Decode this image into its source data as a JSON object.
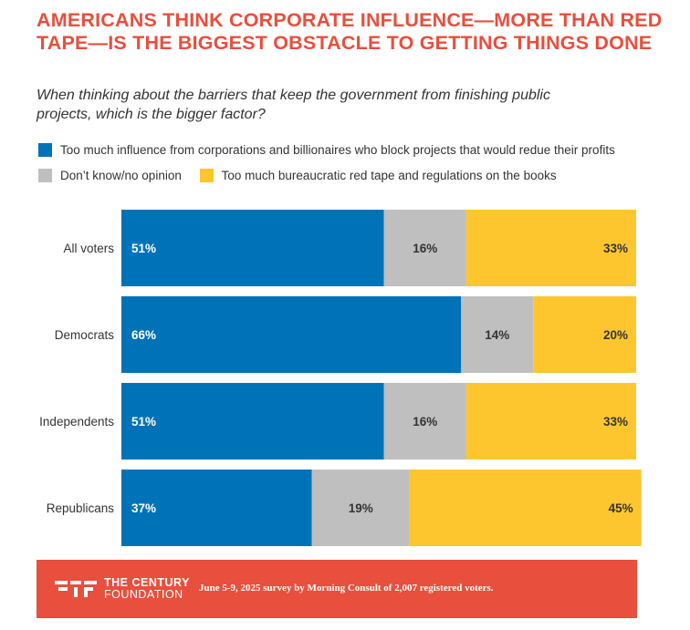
{
  "header": {
    "title": "AMERICANS THINK CORPORATE INFLUENCE—MORE THAN RED TAPE—IS THE BIGGEST OBSTACLE TO GETTING THINGS DONE",
    "subtitle": "When thinking about the barriers that keep the government from finishing public projects, which is the bigger factor?"
  },
  "chart_data": {
    "type": "bar",
    "orientation": "horizontal",
    "stacked": true,
    "categories": [
      "All voters",
      "Democrats",
      "Independents",
      "Republicans"
    ],
    "series": [
      {
        "name": "Too much influence from corporations and billionaires who block projects that would redue their profits",
        "color": "#0072b8",
        "values": [
          51,
          66,
          51,
          37
        ],
        "labels": [
          "51%",
          "66%",
          "51%",
          "37%"
        ]
      },
      {
        "name": "Don’t know/no opinion",
        "color": "#bfbfbf",
        "values": [
          16,
          14,
          16,
          19
        ],
        "labels": [
          "16%",
          "14%",
          "16%",
          "19%"
        ]
      },
      {
        "name": "Too much bureaucratic red tape and regulations on the books",
        "color": "#fdc62f",
        "values": [
          33,
          20,
          33,
          45
        ],
        "labels": [
          "33%",
          "20%",
          "33%",
          "45%"
        ]
      }
    ],
    "xlim": [
      0,
      100
    ],
    "legend": "top",
    "grid": false
  },
  "footer": {
    "brand_line1": "THE CENTURY",
    "brand_line2": "FOUNDATION",
    "source": "June 5-9, 2025 survey by Morning Consult of 2,007 registered voters.",
    "background_color": "#e84f3d"
  }
}
